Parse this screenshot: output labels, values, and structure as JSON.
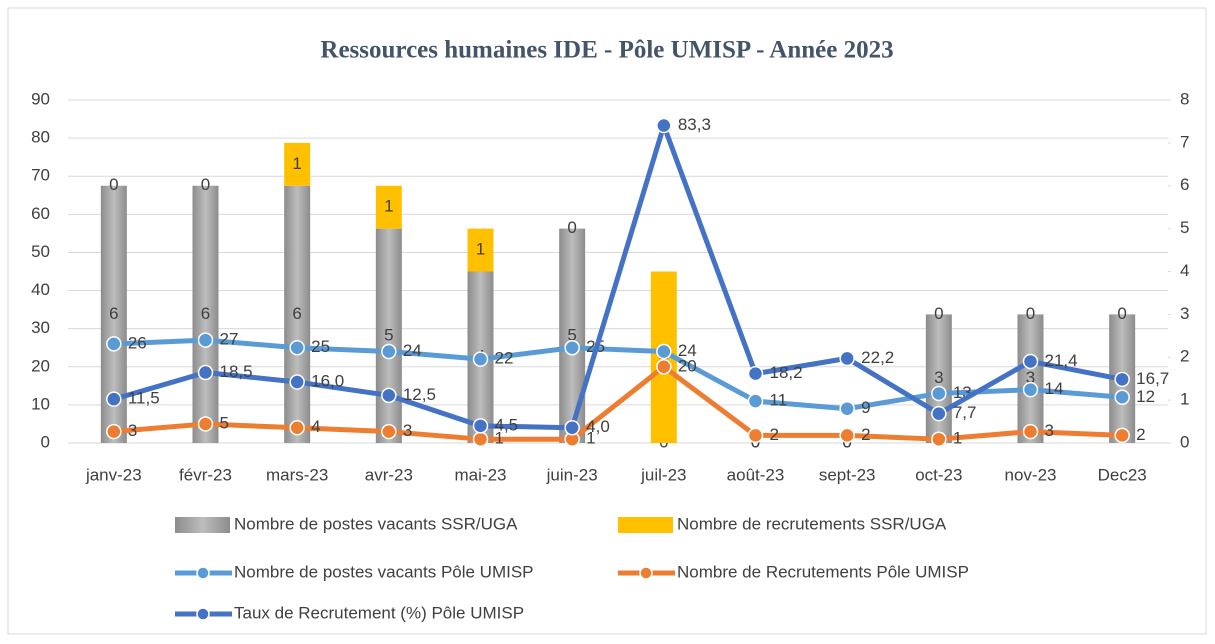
{
  "chart_data": {
    "type": "combo",
    "title": "Ressources humaines IDE - Pôle UMISP - Année 2023",
    "categories": [
      "janv-23",
      "févr-23",
      "mars-23",
      "avr-23",
      "mai-23",
      "juin-23",
      "juil-23",
      "août-23",
      "sept-23",
      "oct-23",
      "nov-23",
      "Dec23"
    ],
    "ylim": [
      0,
      90
    ],
    "yticks": [
      0,
      10,
      20,
      30,
      40,
      50,
      60,
      70,
      80,
      90
    ],
    "y2lim": [
      0,
      8
    ],
    "y2ticks": [
      0,
      1,
      2,
      3,
      4,
      5,
      6,
      7,
      8
    ],
    "grid": true,
    "series": [
      {
        "name": "Nombre de postes vacants SSR/UGA",
        "type": "bar",
        "axis": "y2",
        "color": "#a5a5a5",
        "values": [
          6,
          6,
          6,
          5,
          4,
          5,
          0,
          0,
          0,
          3,
          3,
          3
        ]
      },
      {
        "name": "Nombre de recrutements SSR/UGA",
        "type": "bar",
        "axis": "y2",
        "color": "#ffc000",
        "values": [
          0,
          0,
          1,
          1,
          1,
          0,
          4,
          0,
          0,
          0,
          0,
          0
        ]
      },
      {
        "name": "Nombre de postes  vacants Pôle UMISP",
        "type": "line",
        "color": "#5b9bd5",
        "values": [
          26,
          27,
          25,
          24,
          22,
          25,
          24,
          11,
          9,
          13,
          14,
          12
        ]
      },
      {
        "name": "Nombre de Recrutements Pôle UMISP",
        "type": "line",
        "color": "#ed7d31",
        "values": [
          3,
          5,
          4,
          3,
          1,
          1,
          20,
          2,
          2,
          1,
          3,
          2
        ]
      },
      {
        "name": "Taux de Recrutement (%) Pôle UMISP",
        "type": "line",
        "color": "#4472c4",
        "values": [
          11.5,
          18.5,
          16.0,
          12.5,
          4.5,
          4.0,
          83.3,
          18.2,
          22.2,
          7.7,
          21.4,
          16.7
        ],
        "value_labels": [
          "11,5",
          "18,5",
          "16,0",
          "12,5",
          "4,5",
          "4,0",
          "83,3",
          "18,2",
          "22,2",
          "7,7",
          "21,4",
          "16,7"
        ]
      }
    ]
  }
}
